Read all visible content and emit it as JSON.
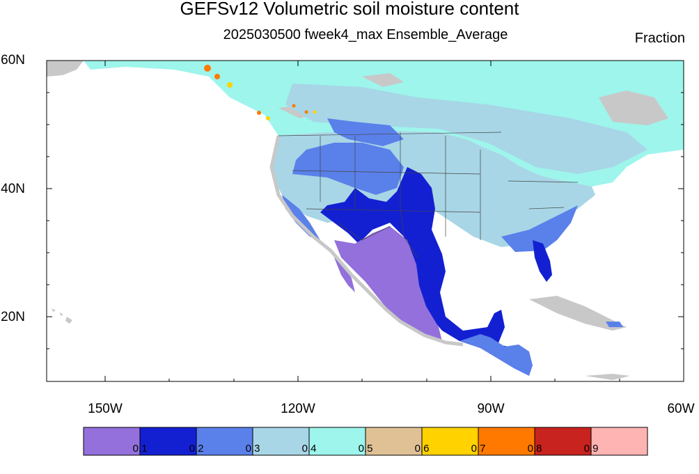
{
  "map": {
    "title": "GEFSv12 Volumetric soil moisture content",
    "subtitle": "2025030500 fweek4_max Ensemble_Average",
    "units": "Fraction",
    "lat_labels": [
      "60N",
      "40N",
      "20N"
    ],
    "lon_labels": [
      "150W",
      "120W",
      "90W",
      "60W"
    ],
    "lat_range": [
      10,
      60
    ],
    "lon_range": [
      -159,
      -60
    ]
  },
  "colorbar": {
    "colors": [
      "#9370db",
      "#1320d2",
      "#5a80ea",
      "#a8d6e6",
      "#9df5ec",
      "#dfc195",
      "#ffd200",
      "#ff7900",
      "#c8231e",
      "#ffb4b4"
    ],
    "labels": [
      "0.1",
      "0.2",
      "0.3",
      "0.4",
      "0.5",
      "0.6",
      "0.7",
      "0.8",
      "0.9"
    ]
  }
}
